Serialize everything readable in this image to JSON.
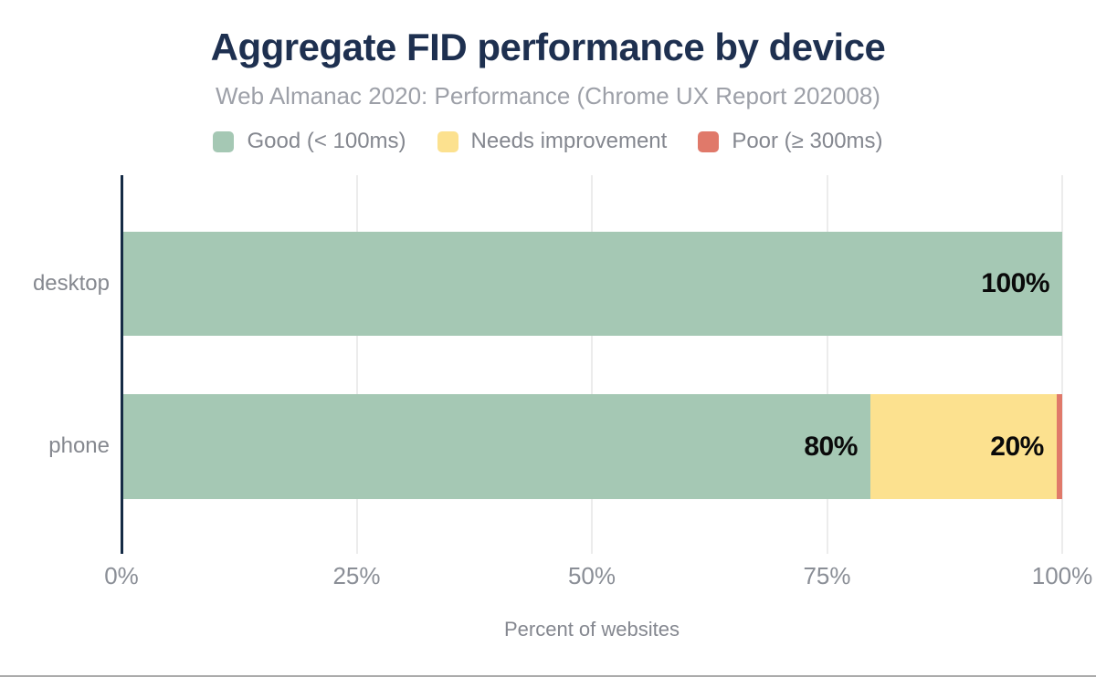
{
  "header": {
    "title": "Aggregate FID performance by device",
    "subtitle": "Web Almanac 2020: Performance (Chrome UX Report 202008)"
  },
  "chart_data": {
    "type": "bar",
    "stacked": true,
    "orientation": "horizontal",
    "title": "Aggregate FID performance by device",
    "subtitle": "Web Almanac 2020: Performance (Chrome UX Report 202008)",
    "xlabel": "Percent of websites",
    "ylabel": "",
    "xlim": [
      0,
      100
    ],
    "grid": true,
    "legend_position": "top",
    "categories": [
      "desktop",
      "phone"
    ],
    "x_ticks": [
      {
        "label": "0%",
        "value": 0
      },
      {
        "label": "25%",
        "value": 25
      },
      {
        "label": "50%",
        "value": 50
      },
      {
        "label": "75%",
        "value": 75
      },
      {
        "label": "100%",
        "value": 100
      }
    ],
    "series": [
      {
        "name": "Good (< 100ms)",
        "color": "#a5c8b4",
        "values": [
          100,
          79.6
        ],
        "labels": [
          "100%",
          "80%"
        ]
      },
      {
        "name": "Needs improvement",
        "color": "#fce18f",
        "values": [
          0,
          19.8
        ],
        "labels": [
          "",
          "20%"
        ]
      },
      {
        "name": "Poor (≥ 300ms)",
        "color": "#e0796a",
        "values": [
          0,
          0.6
        ],
        "labels": [
          "",
          ""
        ]
      }
    ]
  },
  "colors": {
    "title_text": "#1e3050",
    "subtitle_text": "#9da0a8",
    "axis_line": "#152b45",
    "gridline": "#ececec",
    "tick_text": "#8a8e96",
    "bar_label_text": "#0a0a0a",
    "bottom_border": "#ababab"
  },
  "layout_note_values_visible_only": true
}
